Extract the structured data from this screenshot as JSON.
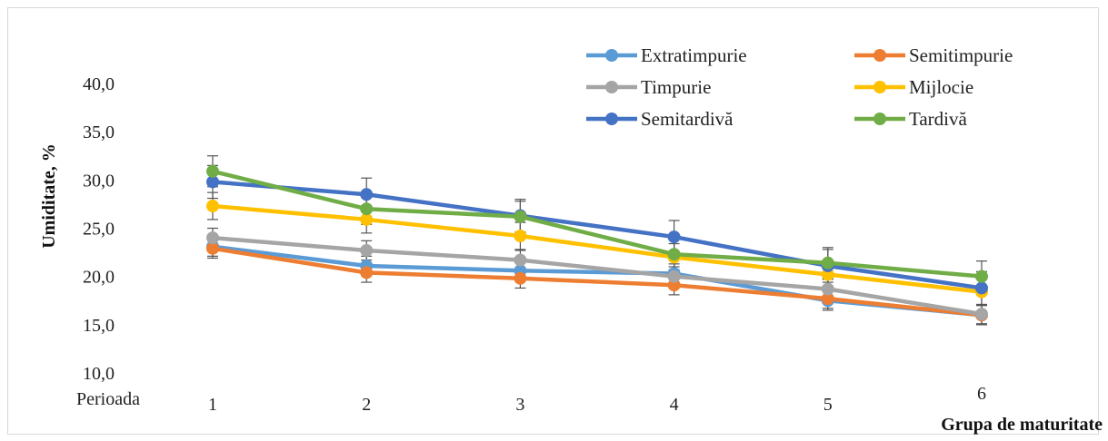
{
  "chart_data": {
    "type": "line",
    "title": "",
    "xlabel": "Grupa de maturitate",
    "ylabel": "Umiditate, %",
    "x_corner_label": "Perioada",
    "categories": [
      "1",
      "2",
      "3",
      "4",
      "5",
      "6"
    ],
    "ylim": [
      10.0,
      40.0
    ],
    "yticks": [
      "10,0",
      "15,0",
      "20,0",
      "25,0",
      "30,0",
      "35,0",
      "40,0"
    ],
    "ytick_values": [
      10,
      15,
      20,
      25,
      30,
      35,
      40
    ],
    "grid": false,
    "legend_position": "top-right",
    "error_bars": true,
    "series": [
      {
        "name": "Extratimpurie",
        "color": "#5B9BD5",
        "values": [
          23.1,
          21.1,
          20.6,
          20.3,
          17.5,
          16.0
        ],
        "errors": [
          1.0,
          1.0,
          1.0,
          1.0,
          1.0,
          1.0
        ]
      },
      {
        "name": "Semitimpurie",
        "color": "#ED7D31",
        "values": [
          22.9,
          20.4,
          19.8,
          19.1,
          17.7,
          16.0
        ],
        "errors": [
          1.0,
          1.0,
          1.0,
          1.0,
          1.0,
          1.0
        ]
      },
      {
        "name": "Timpurie",
        "color": "#A5A5A5",
        "values": [
          24.0,
          22.7,
          21.7,
          20.0,
          18.7,
          16.1
        ],
        "errors": [
          1.0,
          1.0,
          1.0,
          1.0,
          1.0,
          1.0
        ]
      },
      {
        "name": "Mijlocie",
        "color": "#FFC000",
        "values": [
          27.3,
          25.9,
          24.2,
          22.0,
          20.2,
          18.4
        ],
        "errors": [
          1.4,
          1.4,
          1.4,
          1.4,
          1.4,
          1.4
        ]
      },
      {
        "name": "Semitardivă",
        "color": "#4472C4",
        "values": [
          29.8,
          28.5,
          26.3,
          24.1,
          21.1,
          18.8
        ],
        "errors": [
          1.7,
          1.7,
          1.7,
          1.7,
          1.7,
          1.7
        ]
      },
      {
        "name": "Tardivă",
        "color": "#70AD47",
        "values": [
          30.9,
          27.0,
          26.2,
          22.3,
          21.4,
          20.0
        ],
        "errors": [
          1.6,
          1.6,
          1.6,
          1.6,
          1.6,
          1.6
        ]
      }
    ]
  }
}
